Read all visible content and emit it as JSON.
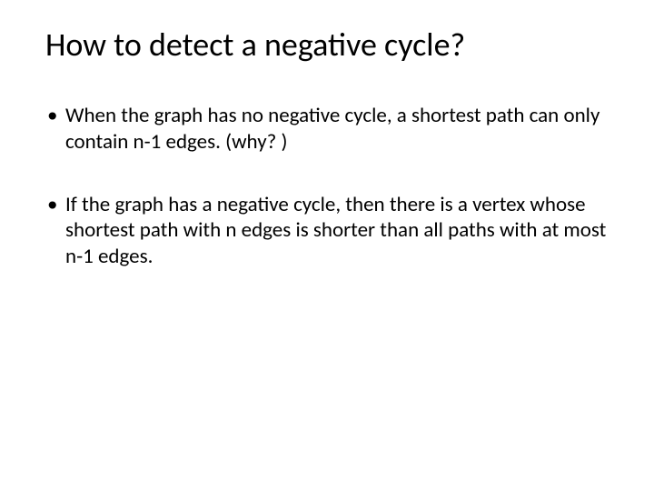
{
  "slide": {
    "title": "How to detect a negative cycle?",
    "bullets": [
      "When the graph has no negative cycle, a shortest path can only contain n-1 edges. (why? )",
      "If the graph has a negative cycle, then there is a vertex whose shortest path with n edges is shorter than all paths with at most n-1 edges."
    ],
    "background_color": "#ffffff",
    "text_color": "#000000",
    "title_fontsize": 36,
    "body_fontsize": 23,
    "font_family": "Calibri"
  }
}
